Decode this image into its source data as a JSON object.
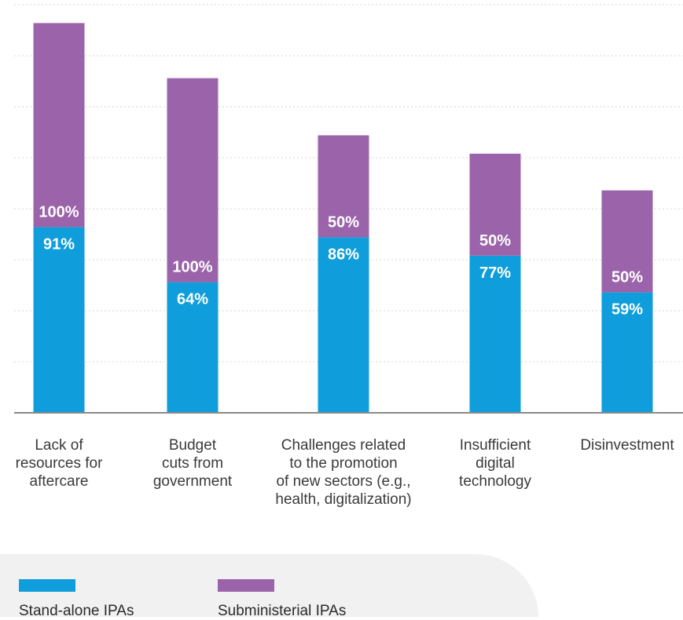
{
  "chart_data": {
    "type": "bar",
    "stacked": true,
    "categories": [
      [
        "Lack of",
        "resources for",
        "aftercare"
      ],
      [
        "Budget",
        "cuts from",
        "government"
      ],
      [
        "Challenges related",
        "to the promotion",
        "of new sectors (e.g.,",
        "health, digitalization)"
      ],
      [
        "Insufficient",
        "digital",
        "technology"
      ],
      [
        "Disinvestment"
      ]
    ],
    "series": [
      {
        "name": "Stand-alone IPAs",
        "values": [
          91,
          64,
          86,
          77,
          59
        ],
        "color": "#0f9edb"
      },
      {
        "name": "Subministerial IPAs",
        "values": [
          100,
          100,
          50,
          50,
          50
        ],
        "color": "#9b64aa"
      }
    ],
    "value_labels": [
      [
        "91%",
        "64%",
        "86%",
        "77%",
        "59%"
      ],
      [
        "100%",
        "100%",
        "50%",
        "50%",
        "50%"
      ]
    ],
    "title": "",
    "xlabel": "",
    "ylabel": "",
    "ylim": [
      0,
      200
    ],
    "grid": true,
    "legend_position": "bottom-left"
  }
}
